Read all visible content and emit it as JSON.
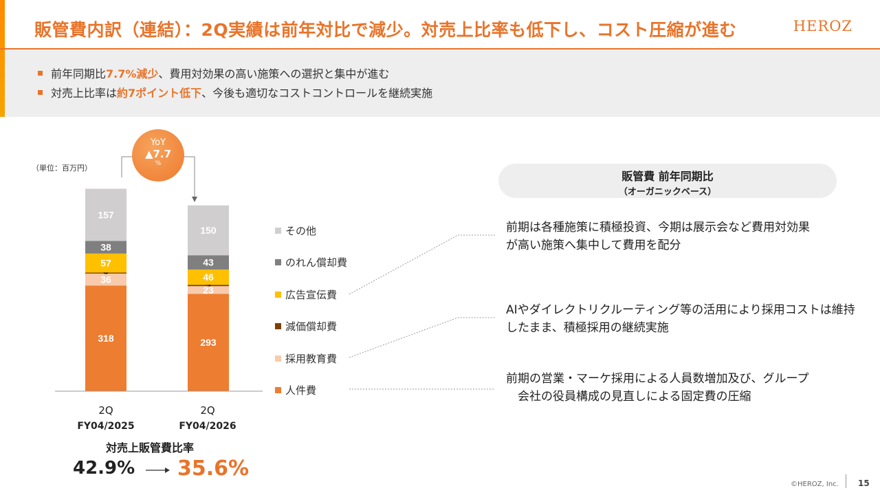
{
  "header": {
    "title": "販管費内訳（連結）：2Q実績は前年対比で減少。対売上比率も低下し、コスト圧縮が進む",
    "logo": "HEROZ"
  },
  "summary": {
    "bullets": [
      {
        "pre": "前年同期比",
        "hl": "7.7%減少",
        "post": "、費用対効果の高い施策への選択と集中が進む"
      },
      {
        "pre": "対売上比率は",
        "hl": "約7ポイント低下",
        "post": "、今後も適切なコストコントロールを継続実施"
      }
    ]
  },
  "chart_data": {
    "type": "bar",
    "stacked": true,
    "unit_label": "（単位：百万円）",
    "categories": [
      "2Q FY04/2025",
      "2Q FY04/2026"
    ],
    "category_lines": [
      [
        "2Q",
        "FY04/2025"
      ],
      [
        "2Q",
        "FY04/2026"
      ]
    ],
    "series": [
      {
        "name": "人件費",
        "values": [
          318,
          293
        ],
        "color": "#ed7d31",
        "label_color": "#ffffff"
      },
      {
        "name": "採用教育費",
        "values": [
          36,
          23
        ],
        "color": "#f8cbad",
        "label_color": "#ffffff"
      },
      {
        "name": "減価償却費",
        "values": [
          3,
          4
        ],
        "color": "#7f3f00",
        "label_color": "#000000"
      },
      {
        "name": "広告宣伝費",
        "values": [
          57,
          46
        ],
        "color": "#ffc000",
        "label_color": "#ffffff"
      },
      {
        "name": "のれん償却費",
        "values": [
          38,
          43
        ],
        "color": "#7f7f7f",
        "label_color": "#ffffff"
      },
      {
        "name": "その他",
        "values": [
          157,
          150
        ],
        "color": "#d0cece",
        "label_color": "#ffffff"
      }
    ],
    "yoy": {
      "line1": "YoY",
      "line2": "▲7.7",
      "line3": "%"
    },
    "ratio": {
      "title": "対売上販管費比率",
      "from": "42.9%",
      "to": "35.6%"
    },
    "legend_placement": "right",
    "grid": false
  },
  "commentary": {
    "pill_title": "販管費 前年同期比",
    "pill_sub": "（オーガニックベース）",
    "notes": [
      {
        "lines": [
          "前期は各種施策に積極投資、今期は展示会など費用対効果",
          "が高い施策へ集中して費用を配分"
        ]
      },
      {
        "lines": [
          "AIやダイレクトリクルーティング等の活用により採用コストは維持",
          "したまま、積極採用の継続実施"
        ]
      },
      {
        "lines": [
          "前期の営業・マーケ採用による人員数増加及び、グループ",
          "　会社の役員構成の見直しによる固定費の圧縮"
        ]
      }
    ]
  },
  "footer": {
    "copyright": "©HEROZ, Inc.",
    "page": "15"
  }
}
